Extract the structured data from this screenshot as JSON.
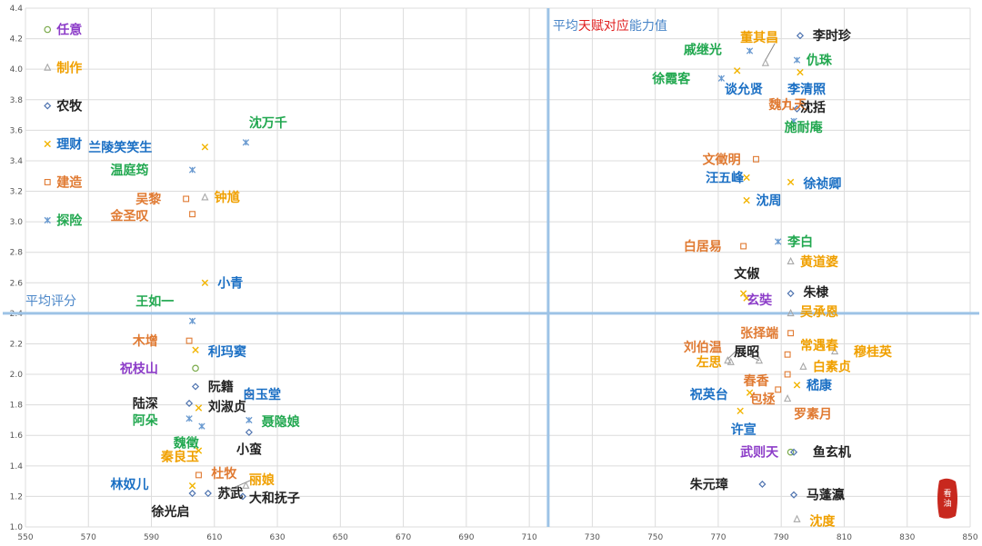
{
  "chart_data": {
    "type": "scatter",
    "title": "",
    "xlabel": "",
    "ylabel": "",
    "xlim": [
      550,
      850
    ],
    "ylim": [
      1.0,
      4.4
    ],
    "grid": true,
    "xticks": [
      550,
      570,
      590,
      610,
      630,
      650,
      670,
      690,
      710,
      730,
      750,
      770,
      790,
      810,
      830,
      850
    ],
    "yticks": [
      1.0,
      1.2,
      1.4,
      1.6,
      1.8,
      2.0,
      2.2,
      2.4,
      2.6,
      2.8,
      3.0,
      3.2,
      3.4,
      3.6,
      3.8,
      4.0,
      4.2,
      4.4
    ],
    "colors": {
      "任意": "#7aaa4a",
      "制作": "#a8a8a8",
      "农牧": "#4f74b0",
      "理财": "#f2b400",
      "建造": "#e07a32",
      "探险": "#6a9ad0"
    },
    "legend": {
      "placement": "left",
      "entries": [
        {
          "name": "任意",
          "marker": "circle",
          "label_color": "#8c3cc8",
          "y": 4.26
        },
        {
          "name": "制作",
          "marker": "triangle",
          "label_color": "#f0a000",
          "y": 4.01
        },
        {
          "name": "农牧",
          "marker": "diamond",
          "label_color": "#222222",
          "y": 3.76
        },
        {
          "name": "理财",
          "marker": "x",
          "label_color": "#1a6fc4",
          "y": 3.51
        },
        {
          "name": "建造",
          "marker": "square",
          "label_color": "#e07a32",
          "y": 3.26
        },
        {
          "name": "探险",
          "marker": "star",
          "label_color": "#22a850",
          "y": 3.01
        }
      ]
    },
    "reference_lines": {
      "x": 716,
      "y": 2.4,
      "x_label_parts": [
        {
          "text": "平均",
          "color": "#4a86c8"
        },
        {
          "text": "天赋对应",
          "color": "#e02020"
        },
        {
          "text": "能力值",
          "color": "#4a86c8"
        }
      ],
      "y_label": "平均评分",
      "line_color": "#9dc3e6"
    },
    "points": [
      {
        "name": "沈万千",
        "x": 620,
        "y": 3.52,
        "marker": "star",
        "color": "#6a9ad0",
        "label_color": "#22a850",
        "label_x": 621,
        "label_y": 3.65
      },
      {
        "name": "兰陵笑笑生",
        "x": 607,
        "y": 3.49,
        "marker": "x",
        "color": "#f2b400",
        "label_color": "#1a6fc4",
        "label_x": 570,
        "label_y": 3.49
      },
      {
        "name": "温庭筠",
        "x": 603,
        "y": 3.34,
        "marker": "star",
        "color": "#6a9ad0",
        "label_color": "#22a850",
        "label_x": 577,
        "label_y": 3.34
      },
      {
        "name": "吴黎",
        "x": 601,
        "y": 3.15,
        "marker": "square",
        "color": "#e07a32",
        "label_color": "#e07a32",
        "label_x": 585,
        "label_y": 3.15
      },
      {
        "name": "钟馗",
        "x": 607,
        "y": 3.16,
        "marker": "triangle",
        "color": "#a8a8a8",
        "label_color": "#f0a000",
        "label_x": 610,
        "label_y": 3.16
      },
      {
        "name": "金圣叹",
        "x": 603,
        "y": 3.05,
        "marker": "square",
        "color": "#e07a32",
        "label_color": "#e07a32",
        "label_x": 577,
        "label_y": 3.04
      },
      {
        "name": "小青",
        "x": 607,
        "y": 2.6,
        "marker": "x",
        "color": "#f2b400",
        "label_color": "#1a6fc4",
        "label_x": 611,
        "label_y": 2.6
      },
      {
        "name": "王如一",
        "x": 603,
        "y": 2.35,
        "marker": "star",
        "color": "#6a9ad0",
        "label_color": "#22a850",
        "label_x": 585,
        "label_y": 2.48
      },
      {
        "name": "木增",
        "x": 602,
        "y": 2.22,
        "marker": "square",
        "color": "#e07a32",
        "label_color": "#e07a32",
        "label_x": 584,
        "label_y": 2.22
      },
      {
        "name": "利玛窦",
        "x": 604,
        "y": 2.16,
        "marker": "x",
        "color": "#f2b400",
        "label_color": "#1a6fc4",
        "label_x": 608,
        "label_y": 2.15
      },
      {
        "name": "祝枝山",
        "x": 604,
        "y": 2.04,
        "marker": "circle",
        "color": "#7aaa4a",
        "label_color": "#8c3cc8",
        "label_x": 580,
        "label_y": 2.04
      },
      {
        "name": "阮籍",
        "x": 604,
        "y": 1.92,
        "marker": "diamond",
        "color": "#4f74b0",
        "label_color": "#222222",
        "label_x": 608,
        "label_y": 1.92
      },
      {
        "name": "白玉堂",
        "x": 621,
        "y": 1.87,
        "marker": "diamond",
        "color": "#4f74b0",
        "label_color": "#1a6fc4",
        "label_x": 619,
        "label_y": 1.87
      },
      {
        "name": "陆深",
        "x": 602,
        "y": 1.81,
        "marker": "diamond",
        "color": "#4f74b0",
        "label_color": "#222222",
        "label_x": 584,
        "label_y": 1.81
      },
      {
        "name": "刘淑贞",
        "x": 605,
        "y": 1.78,
        "marker": "x",
        "color": "#f2b400",
        "label_color": "#222222",
        "label_x": 608,
        "label_y": 1.79
      },
      {
        "name": "阿朵",
        "x": 602,
        "y": 1.71,
        "marker": "star",
        "color": "#6a9ad0",
        "label_color": "#22a850",
        "label_x": 584,
        "label_y": 1.7
      },
      {
        "name": "聂隐娘",
        "x": 621,
        "y": 1.7,
        "marker": "star",
        "color": "#6a9ad0",
        "label_color": "#22a850",
        "label_x": 625,
        "label_y": 1.69
      },
      {
        "name": "魏徵",
        "x": 606,
        "y": 1.66,
        "marker": "star",
        "color": "#6a9ad0",
        "label_color": "#22a850",
        "label_x": 597,
        "label_y": 1.55
      },
      {
        "name": "小蛮",
        "x": 621,
        "y": 1.62,
        "marker": "diamond",
        "color": "#4f74b0",
        "label_color": "#222222",
        "label_x": 617,
        "label_y": 1.51
      },
      {
        "name": "秦良玉",
        "x": 605,
        "y": 1.5,
        "marker": "x",
        "color": "#f2b400",
        "label_color": "#f0a000",
        "label_x": 593,
        "label_y": 1.46
      },
      {
        "name": "杜牧",
        "x": 605,
        "y": 1.34,
        "marker": "square",
        "color": "#e07a32",
        "label_color": "#e07a32",
        "label_x": 609,
        "label_y": 1.35
      },
      {
        "name": "林奴儿",
        "x": 603,
        "y": 1.27,
        "marker": "x",
        "color": "#f2b400",
        "label_color": "#1a6fc4",
        "label_x": 577,
        "label_y": 1.28
      },
      {
        "name": "丽娘",
        "x": 620,
        "y": 1.27,
        "marker": "triangle",
        "color": "#a8a8a8",
        "label_color": "#f0a000",
        "label_x": 621,
        "label_y": 1.31
      },
      {
        "name": "苏武",
        "x": 608,
        "y": 1.22,
        "marker": "diamond",
        "color": "#4f74b0",
        "label_color": "#222222",
        "label_x": 611,
        "label_y": 1.22
      },
      {
        "name": "大和抚子",
        "x": 619,
        "y": 1.2,
        "marker": "diamond",
        "color": "#4f74b0",
        "label_color": "#222222",
        "label_x": 621,
        "label_y": 1.19
      },
      {
        "name": "徐光启",
        "x": 603,
        "y": 1.22,
        "marker": "diamond",
        "color": "#4f74b0",
        "label_color": "#222222",
        "label_x": 590,
        "label_y": 1.1
      },
      {
        "name": "李时珍",
        "x": 796,
        "y": 4.22,
        "marker": "diamond",
        "color": "#4f74b0",
        "label_color": "#222222",
        "label_x": 800,
        "label_y": 4.22
      },
      {
        "name": "董其昌",
        "x": 785,
        "y": 4.04,
        "marker": "triangle",
        "color": "#a8a8a8",
        "label_color": "#f0a000",
        "label_x": 777,
        "label_y": 4.21
      },
      {
        "name": "戚继光",
        "x": 780,
        "y": 4.12,
        "marker": "star",
        "color": "#6a9ad0",
        "label_color": "#22a850",
        "label_x": 759,
        "label_y": 4.13
      },
      {
        "name": "仇珠",
        "x": 795,
        "y": 4.06,
        "marker": "star",
        "color": "#6a9ad0",
        "label_color": "#22a850",
        "label_x": 798,
        "label_y": 4.06
      },
      {
        "name": "徐霞客",
        "x": 771,
        "y": 3.94,
        "marker": "star",
        "color": "#6a9ad0",
        "label_color": "#22a850",
        "label_x": 749,
        "label_y": 3.94
      },
      {
        "name": "谈允贤",
        "x": 776,
        "y": 3.99,
        "marker": "x",
        "color": "#f2b400",
        "label_color": "#1a6fc4",
        "label_x": 772,
        "label_y": 3.87
      },
      {
        "name": "李清照",
        "x": 796,
        "y": 3.98,
        "marker": "x",
        "color": "#f2b400",
        "label_color": "#1a6fc4",
        "label_x": 792,
        "label_y": 3.87
      },
      {
        "name": "魏九天",
        "x": 792,
        "y": 3.77,
        "marker": "square",
        "color": "#e07a32",
        "label_color": "#e07a32",
        "label_x": 786,
        "label_y": 3.77
      },
      {
        "name": "沈括",
        "x": 795,
        "y": 3.74,
        "marker": "diamond",
        "color": "#4f74b0",
        "label_color": "#222222",
        "label_x": 796,
        "label_y": 3.75
      },
      {
        "name": "施耐庵",
        "x": 794,
        "y": 3.66,
        "marker": "star",
        "color": "#6a9ad0",
        "label_color": "#22a850",
        "label_x": 791,
        "label_y": 3.62
      },
      {
        "name": "文徵明",
        "x": 782,
        "y": 3.41,
        "marker": "square",
        "color": "#e07a32",
        "label_color": "#e07a32",
        "label_x": 765,
        "label_y": 3.41
      },
      {
        "name": "汪五峰",
        "x": 779,
        "y": 3.29,
        "marker": "x",
        "color": "#f2b400",
        "label_color": "#1a6fc4",
        "label_x": 766,
        "label_y": 3.29
      },
      {
        "name": "徐祯卿",
        "x": 793,
        "y": 3.26,
        "marker": "x",
        "color": "#f2b400",
        "label_color": "#1a6fc4",
        "label_x": 797,
        "label_y": 3.25
      },
      {
        "name": "沈周",
        "x": 779,
        "y": 3.14,
        "marker": "x",
        "color": "#f2b400",
        "label_color": "#1a6fc4",
        "label_x": 782,
        "label_y": 3.14
      },
      {
        "name": "白居易",
        "x": 778,
        "y": 2.84,
        "marker": "square",
        "color": "#e07a32",
        "label_color": "#e07a32",
        "label_x": 759,
        "label_y": 2.84
      },
      {
        "name": "李白",
        "x": 789,
        "y": 2.87,
        "marker": "star",
        "color": "#6a9ad0",
        "label_color": "#22a850",
        "label_x": 792,
        "label_y": 2.87
      },
      {
        "name": "黄道婆",
        "x": 793,
        "y": 2.74,
        "marker": "triangle",
        "color": "#a8a8a8",
        "label_color": "#f0a000",
        "label_x": 796,
        "label_y": 2.74
      },
      {
        "name": "文俶",
        "x": 778,
        "y": 2.53,
        "marker": "x",
        "color": "#f2b400",
        "label_color": "#222222",
        "label_x": 775,
        "label_y": 2.66
      },
      {
        "name": "玄奘",
        "x": 779,
        "y": 2.5,
        "marker": "x",
        "color": "#f2b400",
        "label_color": "#8c3cc8",
        "label_x": 779,
        "label_y": 2.49
      },
      {
        "name": "朱棣",
        "x": 793,
        "y": 2.53,
        "marker": "diamond",
        "color": "#4f74b0",
        "label_color": "#222222",
        "label_x": 797,
        "label_y": 2.54
      },
      {
        "name": "吴承恩",
        "x": 793,
        "y": 2.4,
        "marker": "triangle",
        "color": "#a8a8a8",
        "label_color": "#f0a000",
        "label_x": 796,
        "label_y": 2.41
      },
      {
        "name": "张择端",
        "x": 793,
        "y": 2.27,
        "marker": "square",
        "color": "#e07a32",
        "label_color": "#e07a32",
        "label_x": 777,
        "label_y": 2.27
      },
      {
        "name": "常遇春",
        "x": 792,
        "y": 2.13,
        "marker": "square",
        "color": "#e07a32",
        "label_color": "#f0a000",
        "label_x": 796,
        "label_y": 2.19
      },
      {
        "name": "刘伯温",
        "x": 773,
        "y": 2.09,
        "marker": "triangle",
        "color": "#a8a8a8",
        "label_color": "#e07a32",
        "label_x": 759,
        "label_y": 2.18
      },
      {
        "name": "展昭",
        "x": 783,
        "y": 2.09,
        "marker": "triangle",
        "color": "#a8a8a8",
        "label_color": "#222222",
        "label_x": 775,
        "label_y": 2.15
      },
      {
        "name": "穆桂英",
        "x": 807,
        "y": 2.15,
        "marker": "triangle",
        "color": "#a8a8a8",
        "label_color": "#f0a000",
        "label_x": 813,
        "label_y": 2.15
      },
      {
        "name": "左思",
        "x": 774,
        "y": 2.08,
        "marker": "triangle",
        "color": "#a8a8a8",
        "label_color": "#f0a000",
        "label_x": 763,
        "label_y": 2.08
      },
      {
        "name": "白素贞",
        "x": 797,
        "y": 2.05,
        "marker": "triangle",
        "color": "#a8a8a8",
        "label_color": "#f0a000",
        "label_x": 800,
        "label_y": 2.05
      },
      {
        "name": "春香",
        "x": 792,
        "y": 2.0,
        "marker": "square",
        "color": "#e07a32",
        "label_color": "#e07a32",
        "label_x": 778,
        "label_y": 1.96
      },
      {
        "name": "嵇康",
        "x": 795,
        "y": 1.93,
        "marker": "x",
        "color": "#f2b400",
        "label_color": "#1a6fc4",
        "label_x": 798,
        "label_y": 1.93
      },
      {
        "name": "祝英台",
        "x": 780,
        "y": 1.88,
        "marker": "x",
        "color": "#f2b400",
        "label_color": "#1a6fc4",
        "label_x": 761,
        "label_y": 1.87
      },
      {
        "name": "包拯",
        "x": 789,
        "y": 1.9,
        "marker": "square",
        "color": "#e07a32",
        "label_color": "#e07a32",
        "label_x": 780,
        "label_y": 1.84
      },
      {
        "name": "罗素月",
        "x": 792,
        "y": 1.84,
        "marker": "triangle",
        "color": "#a8a8a8",
        "label_color": "#e07a32",
        "label_x": 794,
        "label_y": 1.74
      },
      {
        "name": "许宣",
        "x": 777,
        "y": 1.76,
        "marker": "x",
        "color": "#f2b400",
        "label_color": "#1a6fc4",
        "label_x": 774,
        "label_y": 1.64
      },
      {
        "name": "武则天",
        "x": 793,
        "y": 1.49,
        "marker": "circle",
        "color": "#7aaa4a",
        "label_color": "#8c3cc8",
        "label_x": 777,
        "label_y": 1.49
      },
      {
        "name": "鱼玄机",
        "x": 794,
        "y": 1.49,
        "marker": "diamond",
        "color": "#4f74b0",
        "label_color": "#222222",
        "label_x": 800,
        "label_y": 1.49
      },
      {
        "name": "朱元璋",
        "x": 784,
        "y": 1.28,
        "marker": "diamond",
        "color": "#4f74b0",
        "label_color": "#222222",
        "label_x": 761,
        "label_y": 1.28
      },
      {
        "name": "马蓬瀛",
        "x": 794,
        "y": 1.21,
        "marker": "diamond",
        "color": "#4f74b0",
        "label_color": "#222222",
        "label_x": 798,
        "label_y": 1.21
      },
      {
        "name": "沈度",
        "x": 795,
        "y": 1.05,
        "marker": "triangle",
        "color": "#a8a8a8",
        "label_color": "#f0a000",
        "label_x": 799,
        "label_y": 1.04
      }
    ],
    "connector_lines": [
      {
        "from": [
          788,
          4.17
        ],
        "to": [
          785,
          4.06
        ]
      },
      {
        "from": [
          622,
          1.31
        ],
        "to": [
          612,
          1.22
        ]
      },
      {
        "from": [
          780,
          2.12
        ],
        "to": [
          783,
          2.09
        ]
      },
      {
        "from": [
          776,
          2.16
        ],
        "to": [
          773,
          2.1
        ]
      }
    ]
  },
  "seal": {
    "text": "看油",
    "color": "#c8281e"
  }
}
